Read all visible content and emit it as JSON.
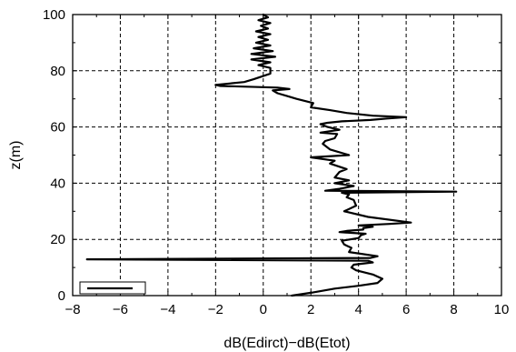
{
  "chart_data": {
    "type": "line",
    "title": "",
    "xlabel": "dB(Edirct)−dB(Etot)",
    "ylabel": "z(m)",
    "xlim": [
      -8,
      10
    ],
    "ylim": [
      0,
      100
    ],
    "xticks": [
      -8,
      -6,
      -4,
      -2,
      0,
      2,
      4,
      6,
      8,
      10
    ],
    "yticks": [
      0,
      20,
      40,
      60,
      80,
      100
    ],
    "x_tick_labels": [
      "−8",
      "−6",
      "−4",
      "−2",
      "0",
      "2",
      "4",
      "6",
      "8",
      "10"
    ],
    "y_tick_labels": [
      "0",
      "20",
      "40",
      "60",
      "80",
      "100"
    ],
    "grid": true,
    "legend": {
      "position": "bottom-left",
      "entries": [
        ""
      ]
    },
    "series": [
      {
        "x": [
          1.2,
          2.0,
          3.0,
          4.0,
          4.8,
          5.0,
          4.6,
          3.9,
          3.7,
          3.8,
          4.6,
          4.4,
          -7.4,
          4.5,
          4.8,
          3.6,
          3.7,
          3.4,
          3.3,
          4.0,
          4.1,
          4.3,
          3.2,
          3.5,
          4.2,
          4.2,
          4.6,
          4.0,
          5.3,
          6.2,
          4.4,
          3.4,
          3.9,
          3.8,
          3.5,
          3.6,
          3.3,
          8.1,
          2.6,
          3.2,
          3.8,
          3.0,
          3.6,
          3.0,
          3.1,
          3.2,
          3.5,
          2.8,
          3.0,
          2.0,
          3.6,
          2.8,
          2.5,
          2.6,
          3.0,
          3.1,
          2.4,
          3.2,
          2.7,
          2.4,
          2.7,
          3.3,
          4.5,
          5.2,
          6.0,
          4.6,
          3.5,
          2.8,
          2.0,
          2.1,
          1.4,
          1.0,
          0.6,
          0.4,
          1.1,
          0.6,
          -1.8,
          -2.0,
          -0.8,
          -0.4,
          0.3,
          0.3,
          -0.2,
          0.3,
          -0.5,
          0.5,
          -0.5,
          0.4,
          -0.4,
          0.3,
          -0.3,
          0.2,
          -0.2,
          0.3,
          -0.3,
          0.2,
          -0.1,
          0.3,
          -0.2,
          0.2,
          0.0
        ],
        "y": [
          0.0,
          1.0,
          2.5,
          3.5,
          4.5,
          6.0,
          7.5,
          9.0,
          10.0,
          11.0,
          11.8,
          12.4,
          12.9,
          13.4,
          14.0,
          15.5,
          17.0,
          18.2,
          19.5,
          20.5,
          21.5,
          22.0,
          22.6,
          23.0,
          23.5,
          24.0,
          24.5,
          25.0,
          25.5,
          26.0,
          28.0,
          30.0,
          32.0,
          34.0,
          35.0,
          36.0,
          36.6,
          37.0,
          37.3,
          38.0,
          39.0,
          40.0,
          41.0,
          42.0,
          43.0,
          44.0,
          45.0,
          47.0,
          48.0,
          49.2,
          50.0,
          52.0,
          54.0,
          55.0,
          56.0,
          57.5,
          58.0,
          59.0,
          60.0,
          61.0,
          61.5,
          62.0,
          62.5,
          63.0,
          63.5,
          64.0,
          65.0,
          66.0,
          67.0,
          68.5,
          70.0,
          71.0,
          72.0,
          73.0,
          73.5,
          74.0,
          74.6,
          75.0,
          76.0,
          77.0,
          79.0,
          81.0,
          82.0,
          83.0,
          84.0,
          85.0,
          86.0,
          87.0,
          88.0,
          89.0,
          90.0,
          91.0,
          92.0,
          93.0,
          94.0,
          95.0,
          96.0,
          97.0,
          98.0,
          99.0,
          100.0
        ]
      }
    ]
  }
}
